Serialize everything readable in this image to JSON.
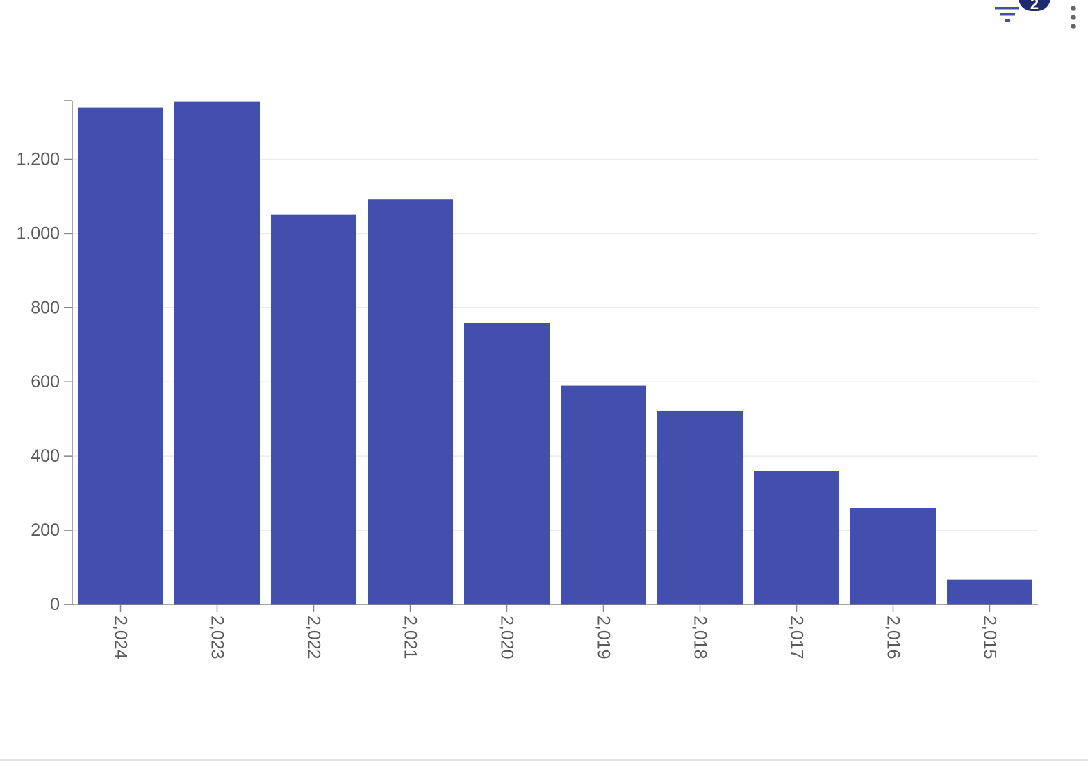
{
  "toolbar": {
    "filter_icon": "filter-icon",
    "filter_badge_count": "2",
    "more_icon": "more-vertical-icon"
  },
  "colors": {
    "bar": "#434FAD",
    "axis": "#888888",
    "grid": "#ececec",
    "tick_text": "#595959",
    "badge": "#1f2a6e"
  },
  "chart_data": {
    "type": "bar",
    "categories": [
      "2,024",
      "2,023",
      "2,022",
      "2,021",
      "2,020",
      "2,019",
      "2,018",
      "2,017",
      "2,016",
      "2,015"
    ],
    "values": [
      1340,
      1355,
      1050,
      1092,
      758,
      590,
      522,
      360,
      260,
      68
    ],
    "title": "",
    "xlabel": "",
    "ylabel": "",
    "ylim": [
      0,
      1358
    ],
    "yticks": [
      0,
      200,
      400,
      600,
      800,
      1000,
      1200
    ],
    "ytick_labels": [
      "0",
      "200",
      "400",
      "600",
      "800",
      "1.000",
      "1.200"
    ],
    "grid": true,
    "legend": "none",
    "x_tick_rotation": "vertical"
  }
}
